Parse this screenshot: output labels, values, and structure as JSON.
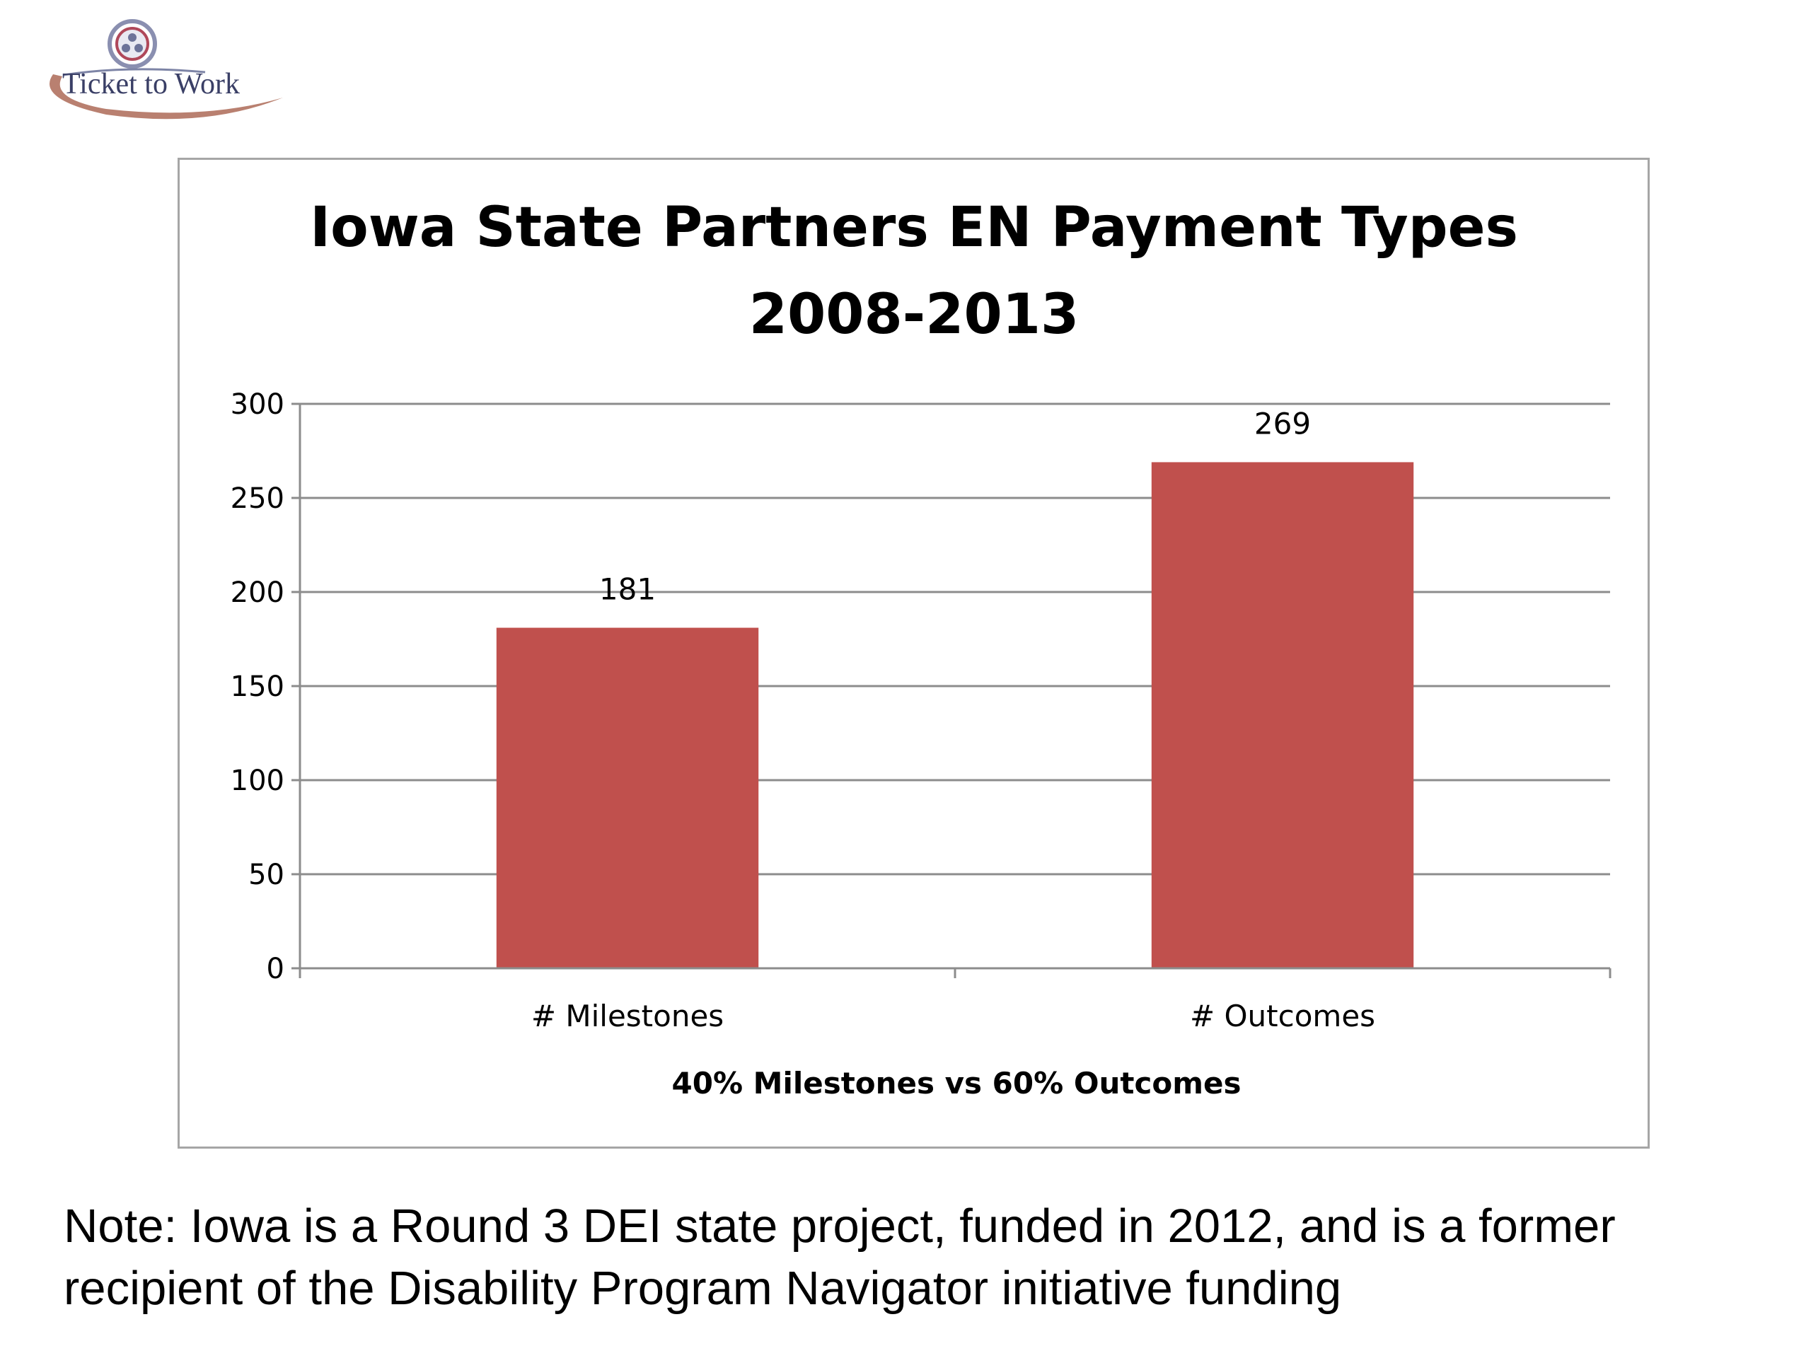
{
  "logo": {
    "text": "Ticket to Work"
  },
  "chart_data": {
    "type": "bar",
    "title_lines": [
      "Iowa State Partners EN Payment Types",
      "2008-2013"
    ],
    "categories": [
      "# Milestones",
      "# Outcomes"
    ],
    "values": [
      181,
      269
    ],
    "data_labels": [
      "181",
      "269"
    ],
    "xlabel": "40% Milestones vs 60% Outcomes",
    "ylabel": "",
    "ylim": [
      0,
      300
    ],
    "yticks": [
      0,
      50,
      100,
      150,
      200,
      250,
      300
    ],
    "bar_color": "#c0504d",
    "grid": true,
    "legend": "none"
  },
  "note": "Note: Iowa is a Round 3 DEI state project, funded in 2012, and is a former recipient of the Disability Program Navigator initiative funding"
}
